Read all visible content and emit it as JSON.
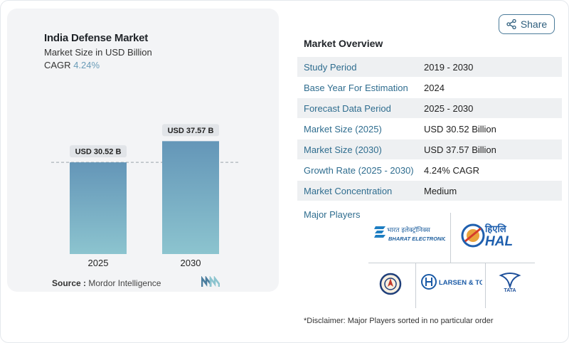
{
  "chart_data": {
    "type": "bar",
    "title": "India Defense Market",
    "subtitle": "Market Size in USD Billion",
    "cagr_label": "CAGR",
    "cagr_value": "4.24%",
    "categories": [
      "2025",
      "2030"
    ],
    "values": [
      30.52,
      37.57
    ],
    "data_labels": [
      "USD 30.52 B",
      "USD 37.57 B"
    ],
    "ylim": [
      0,
      45
    ],
    "reference_line": 30.52,
    "bar_color_top": "#6496b8",
    "bar_color_bottom": "#8cc4cf"
  },
  "source": {
    "label": "Source :",
    "value": "Mordor Intelligence"
  },
  "share": {
    "label": "Share",
    "icon": "share-icon"
  },
  "overview": {
    "title": "Market Overview",
    "rows": [
      {
        "key": "Study Period",
        "value": "2019 - 2030"
      },
      {
        "key": "Base Year For Estimation",
        "value": "2024"
      },
      {
        "key": "Forecast Data Period",
        "value": "2025 - 2030"
      },
      {
        "key": "Market Size (2025)",
        "value": "USD 30.52 Billion"
      },
      {
        "key": "Market Size (2030)",
        "value": "USD 37.57 Billion"
      },
      {
        "key": "Growth Rate (2025 - 2030)",
        "value": "4.24% CAGR"
      },
      {
        "key": "Market Concentration",
        "value": "Medium"
      }
    ]
  },
  "players": {
    "title": "Major Players",
    "logos": [
      {
        "name": "Bharat Electronics",
        "text": "BHARAT ELECTRONICS",
        "text_hi": "भारत इलेक्ट्रॉनिक्स"
      },
      {
        "name": "HAL",
        "text": "HAL",
        "text_hi": "हिएलि"
      },
      {
        "name": "DRDO",
        "text": ""
      },
      {
        "name": "Larsen & Toubro",
        "text": "LARSEN & TOUBRO"
      },
      {
        "name": "Tata",
        "text": "TATA"
      }
    ]
  },
  "disclaimer": "*Disclaimer: Major Players sorted in no particular order",
  "colors": {
    "accent": "#2f6d8f",
    "cagr": "#6a9cb8"
  }
}
